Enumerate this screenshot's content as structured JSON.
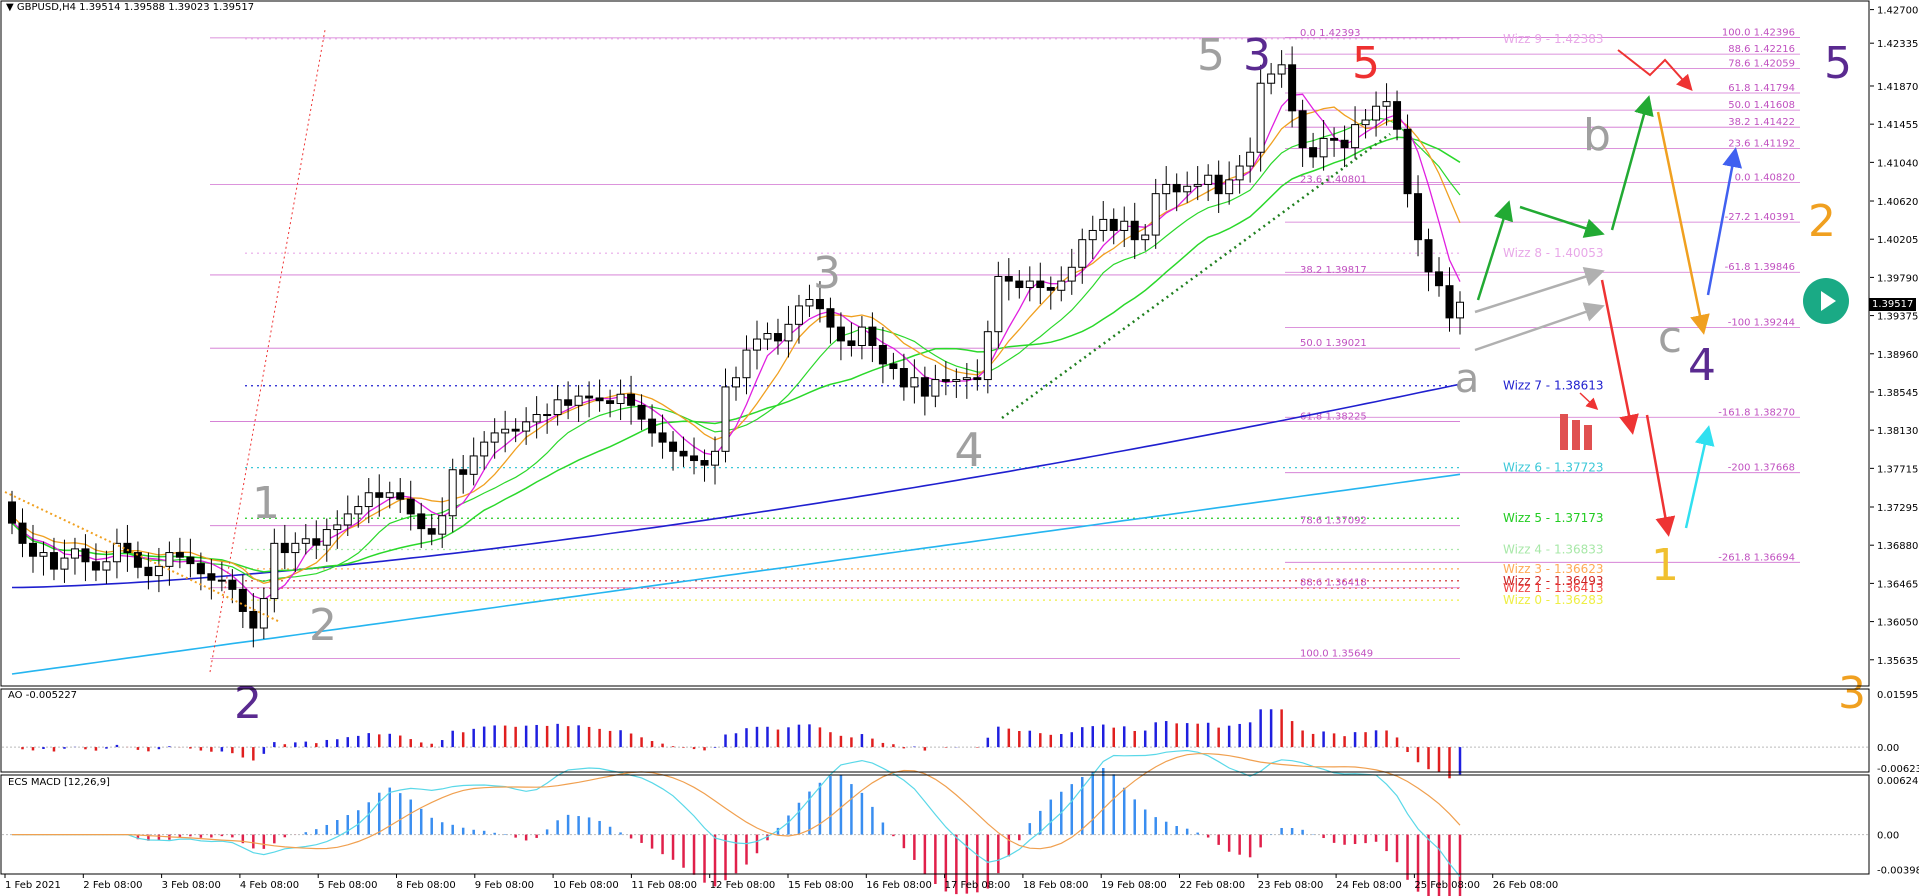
{
  "header": {
    "symbol": "GBPUSD,H4",
    "ohlc": "1.39514 1.39588 1.39023 1.39517",
    "current_price": "1.39517"
  },
  "panels": {
    "ao_title": "AO -0.005227",
    "macd_title": "ECS MACD [12,26,9]"
  },
  "chart_data": {
    "type": "candlestick",
    "price_axis": {
      "range": [
        1.3535,
        1.4275
      ],
      "ticks": [
        "1.42700",
        "1.42335",
        "1.41870",
        "1.41455",
        "1.41040",
        "1.40620",
        "1.40205",
        "1.39790",
        "1.39375",
        "1.38960",
        "1.38545",
        "1.38130",
        "1.37715",
        "1.37295",
        "1.36880",
        "1.36465",
        "1.36050",
        "1.35635"
      ]
    },
    "ao_axis": {
      "ticks": [
        "0.015956",
        "0.00",
        "-0.006237"
      ],
      "range": [
        -0.0075,
        0.0175
      ]
    },
    "macd_axis": {
      "ticks": [
        "0.0062467",
        "0.00",
        "-0.0039877"
      ],
      "range": [
        -0.0045,
        0.0068
      ]
    },
    "x_labels": [
      "1 Feb 2021",
      "2 Feb 08:00",
      "3 Feb 08:00",
      "4 Feb 08:00",
      "5 Feb 08:00",
      "8 Feb 08:00",
      "9 Feb 08:00",
      "10 Feb 08:00",
      "11 Feb 08:00",
      "12 Feb 08:00",
      "15 Feb 08:00",
      "16 Feb 08:00",
      "17 Feb 08:00",
      "18 Feb 08:00",
      "19 Feb 08:00",
      "22 Feb 08:00",
      "23 Feb 08:00",
      "24 Feb 08:00",
      "25 Feb 08:00",
      "26 Feb 08:00"
    ],
    "candles_close": [
      1.3712,
      1.369,
      1.3676,
      1.368,
      1.3662,
      1.3674,
      1.3684,
      1.367,
      1.3661,
      1.367,
      1.369,
      1.368,
      1.3664,
      1.3655,
      1.3665,
      1.368,
      1.3675,
      1.3668,
      1.3657,
      1.365,
      1.365,
      1.364,
      1.3616,
      1.3598,
      1.363,
      1.369,
      1.368,
      1.369,
      1.3695,
      1.3688,
      1.3705,
      1.371,
      1.3722,
      1.373,
      1.3745,
      1.374,
      1.3745,
      1.3738,
      1.3722,
      1.3706,
      1.37,
      1.372,
      1.377,
      1.3765,
      1.3785,
      1.38,
      1.381,
      1.3814,
      1.3812,
      1.3822,
      1.383,
      1.383,
      1.3846,
      1.384,
      1.385,
      1.3848,
      1.3845,
      1.3842,
      1.3852,
      1.384,
      1.3825,
      1.381,
      1.38,
      1.379,
      1.3785,
      1.378,
      1.3775,
      1.379,
      1.386,
      1.387,
      1.39,
      1.3912,
      1.3918,
      1.391,
      1.3928,
      1.3948,
      1.3955,
      1.3945,
      1.3925,
      1.391,
      1.3905,
      1.3925,
      1.3905,
      1.3885,
      1.388,
      1.386,
      1.387,
      1.385,
      1.3868,
      1.3866,
      1.3868,
      1.387,
      1.3868,
      1.392,
      1.398,
      1.3975,
      1.3968,
      1.3975,
      1.3968,
      1.3965,
      1.3975,
      1.399,
      1.402,
      1.403,
      1.4042,
      1.403,
      1.404,
      1.402,
      1.4025,
      1.407,
      1.408,
      1.4072,
      1.4078,
      1.408,
      1.409,
      1.407,
      1.4085,
      1.41,
      1.4115,
      1.419,
      1.42,
      1.421,
      1.416,
      1.412,
      1.411,
      1.413,
      1.4128,
      1.412,
      1.4145,
      1.415,
      1.4165,
      1.417,
      1.414,
      1.407,
      1.402,
      1.3985,
      1.397,
      1.3935,
      1.3952
    ],
    "fib_levels": [
      {
        "label": "0.0 1.42393",
        "price": 1.42393
      },
      {
        "label": "23.6 1.40801",
        "price": 1.40801
      },
      {
        "label": "38.2 1.39817",
        "price": 1.39817
      },
      {
        "label": "50.0 1.39021",
        "price": 1.39021
      },
      {
        "label": "61.8 1.38225",
        "price": 1.38225
      },
      {
        "label": "78.6 1.37092",
        "price": 1.37092
      },
      {
        "label": "88.6 1.36418",
        "price": 1.36418
      },
      {
        "label": "100.0 1.35649",
        "price": 1.35649
      }
    ],
    "fib_ext": [
      {
        "label": "100.0 1.42396",
        "price": 1.42396
      },
      {
        "label": "88.6 1.42216",
        "price": 1.42216
      },
      {
        "label": "78.6 1.42059",
        "price": 1.42059
      },
      {
        "label": "61.8 1.41794",
        "price": 1.41794
      },
      {
        "label": "50.0 1.41608",
        "price": 1.41608
      },
      {
        "label": "38.2 1.41422",
        "price": 1.41422
      },
      {
        "label": "23.6 1.41192",
        "price": 1.41192
      },
      {
        "label": "0.0 1.40820",
        "price": 1.4082
      },
      {
        "label": "-27.2 1.40391",
        "price": 1.40391
      },
      {
        "label": "-61.8 1.39846",
        "price": 1.39846
      },
      {
        "label": "-100 1.39244",
        "price": 1.39244
      },
      {
        "label": "-161.8 1.38270",
        "price": 1.3827
      },
      {
        "label": "-200 1.37668",
        "price": 1.37668
      },
      {
        "label": "-261.8 1.36694",
        "price": 1.36694
      }
    ],
    "wizz_levels": [
      {
        "label": "Wizz 9 - 1.42383",
        "price": 1.42383,
        "color": "#e8a8e8"
      },
      {
        "label": "Wizz 8 - 1.40053",
        "price": 1.40053,
        "color": "#e8a8e8"
      },
      {
        "label": "Wizz 7 - 1.38613",
        "price": 1.38613,
        "color": "#1f1fcf"
      },
      {
        "label": "Wizz 6 - 1.37723",
        "price": 1.37723,
        "color": "#3cc8d8"
      },
      {
        "label": "Wizz 5 - 1.37173",
        "price": 1.37173,
        "color": "#22cc22"
      },
      {
        "label": "Wizz 4 - 1.36833",
        "price": 1.36833,
        "color": "#a8e8a8"
      },
      {
        "label": "Wizz 3 - 1.36623",
        "price": 1.36623,
        "color": "#ffaa55"
      },
      {
        "label": "Wizz 2 - 1.36493",
        "price": 1.36493,
        "color": "#cc2222"
      },
      {
        "label": "Wizz 1 - 1.36413",
        "price": 1.36413,
        "color": "#ee4444"
      },
      {
        "label": "Wizz 0 - 1.36283",
        "price": 1.36283,
        "color": "#eeee44"
      }
    ],
    "wave_labels": [
      {
        "text": "2",
        "color": "#5a2a90"
      },
      {
        "text": "1",
        "color": "#a0a0a0"
      },
      {
        "text": "2",
        "color": "#a0a0a0"
      },
      {
        "text": "3",
        "color": "#a0a0a0"
      },
      {
        "text": "4",
        "color": "#a0a0a0"
      },
      {
        "text": "5",
        "color": "#a0a0a0"
      },
      {
        "text": "3",
        "color": "#5a2a90"
      },
      {
        "text": "5",
        "color": "#ee3030"
      },
      {
        "text": "a",
        "color": "#a0a0a0"
      },
      {
        "text": "b",
        "color": "#a0a0a0"
      },
      {
        "text": "c",
        "color": "#a0a0a0"
      },
      {
        "text": "4",
        "color": "#5a2a90"
      },
      {
        "text": "5",
        "color": "#5a2a90"
      },
      {
        "text": "2",
        "color": "#f0a020"
      },
      {
        "text": "1",
        "color": "#f0c030"
      },
      {
        "text": "3",
        "color": "#f0a020"
      }
    ]
  }
}
